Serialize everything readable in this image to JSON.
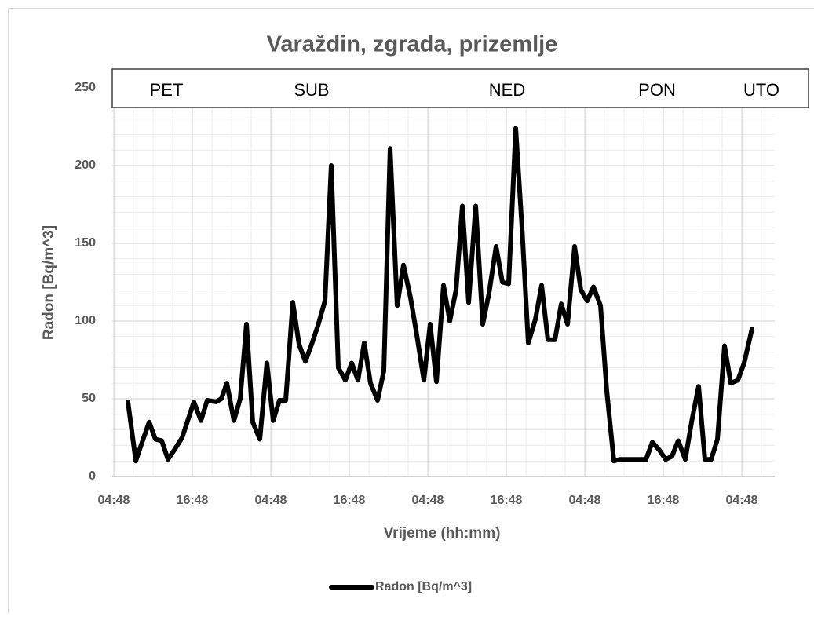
{
  "chart_data": {
    "type": "line",
    "title": "Varaždin, zgrada, prizemlje",
    "x_label": "Vrijeme (hh:mm)",
    "y_label": "Radon [Bq/m^3]",
    "day_labels": [
      "PET",
      "SUB",
      "NED",
      "PON",
      "UTO"
    ],
    "xlim": [
      -0.24,
      101.04
    ],
    "ylim": [
      0,
      250
    ],
    "xticks": [
      {
        "value": 0,
        "label": "04:48"
      },
      {
        "value": 12,
        "label": "16:48"
      },
      {
        "value": 24,
        "label": "04:48"
      },
      {
        "value": 36,
        "label": "16:48"
      },
      {
        "value": 48,
        "label": "04:48"
      },
      {
        "value": 60,
        "label": "16:48"
      },
      {
        "value": 72,
        "label": "04:48"
      },
      {
        "value": 84,
        "label": "16:48"
      },
      {
        "value": 96,
        "label": "04:48"
      }
    ],
    "yticks": [
      0,
      50,
      100,
      150,
      200,
      250
    ],
    "minor_xticks": [
      3,
      6,
      9,
      15,
      18,
      21,
      27,
      30,
      33,
      39,
      42,
      45,
      51,
      54,
      57,
      63,
      66,
      69,
      75,
      78,
      81,
      87,
      90,
      93,
      99
    ],
    "minor_yticks": [
      10,
      20,
      30,
      40,
      60,
      70,
      80,
      90,
      110,
      120,
      130,
      140,
      160,
      170,
      180,
      190,
      210,
      220,
      230,
      240
    ],
    "grid": true,
    "legend": "bottom",
    "series": [
      {
        "name": "Radon [Bq/m^3]",
        "color": "#000000",
        "x": [
          2.16,
          3.36,
          4.32,
          5.4,
          6.36,
          7.32,
          8.28,
          9.24,
          10.44,
          12.24,
          13.32,
          14.28,
          15.6,
          16.44,
          17.28,
          18.36,
          19.32,
          20.28,
          21.24,
          22.32,
          23.4,
          24.36,
          25.32,
          26.28,
          27.36,
          28.32,
          29.28,
          30.24,
          31.2,
          32.28,
          33.24,
          34.32,
          35.4,
          36.36,
          37.32,
          38.28,
          39.24,
          40.32,
          41.28,
          42.24,
          43.32,
          44.28,
          45.36,
          46.32,
          47.4,
          48.36,
          49.32,
          50.4,
          51.36,
          52.32,
          53.28,
          54.24,
          55.32,
          56.4,
          57.36,
          58.44,
          59.4,
          60.36,
          61.44,
          62.4,
          63.36,
          64.44,
          65.4,
          66.36,
          67.44,
          68.4,
          69.36,
          70.44,
          71.4,
          72.36,
          73.32,
          74.4,
          75.36,
          76.44,
          77.4,
          78.36,
          79.32,
          80.4,
          81.36,
          82.32,
          83.4,
          84.36,
          85.32,
          86.28,
          87.36,
          88.32,
          89.4,
          90.36,
          91.32,
          92.28,
          93.36,
          94.32,
          95.4,
          96.36,
          97.56
        ],
        "values": [
          48,
          10,
          22,
          35,
          24,
          23,
          11,
          17,
          25,
          48,
          36,
          49,
          48,
          50,
          60,
          36,
          50,
          98,
          35,
          24,
          73,
          36,
          49,
          49,
          112,
          85,
          74,
          85,
          97,
          113,
          200,
          70,
          62,
          73,
          62,
          86,
          60,
          49,
          68,
          211,
          110,
          136,
          115,
          91,
          62,
          98,
          61,
          123,
          100,
          120,
          174,
          112,
          174,
          98,
          118,
          148,
          125,
          124,
          224,
          160,
          86,
          101,
          123,
          88,
          88,
          111,
          98,
          148,
          120,
          113,
          122,
          110,
          55,
          10,
          11,
          11,
          11,
          11,
          11,
          22,
          17,
          11,
          13,
          23,
          11,
          35,
          58,
          11,
          11,
          24,
          84,
          60,
          62,
          73,
          95
        ]
      }
    ]
  }
}
